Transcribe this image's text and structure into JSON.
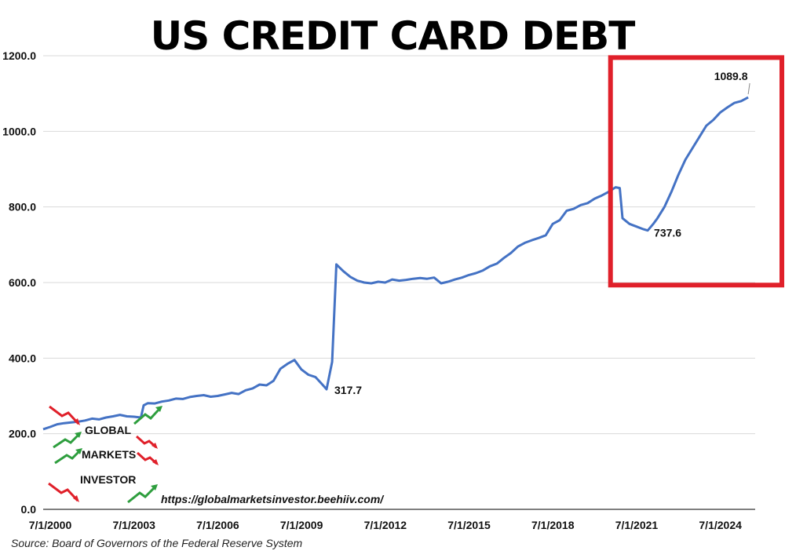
{
  "chart_data": {
    "type": "line",
    "title": "US CREDIT CARD DEBT",
    "xlabel": "",
    "ylabel": "",
    "ylim": [
      0,
      1200
    ],
    "yticks": [
      "0.0",
      "200.0",
      "400.0",
      "600.0",
      "800.0",
      "1000.0",
      "1200.0"
    ],
    "xticks": [
      "7/1/2000",
      "7/1/2003",
      "7/1/2006",
      "7/1/2009",
      "7/1/2012",
      "7/1/2015",
      "7/1/2018",
      "7/1/2021",
      "7/1/2024"
    ],
    "grid": true,
    "line_color": "#4472c4",
    "highlight_color": "#e0202a",
    "series": [
      {
        "values": [
          [
            2000.0,
            212
          ],
          [
            2000.25,
            218
          ],
          [
            2000.5,
            225
          ],
          [
            2000.75,
            228
          ],
          [
            2001.0,
            230
          ],
          [
            2001.25,
            232
          ],
          [
            2001.5,
            235
          ],
          [
            2001.75,
            240
          ],
          [
            2002.0,
            238
          ],
          [
            2002.25,
            243
          ],
          [
            2002.5,
            246
          ],
          [
            2002.75,
            250
          ],
          [
            2003.0,
            246
          ],
          [
            2003.25,
            245
          ],
          [
            2003.5,
            243
          ],
          [
            2003.6,
            275
          ],
          [
            2003.75,
            281
          ],
          [
            2004.0,
            280
          ],
          [
            2004.25,
            285
          ],
          [
            2004.5,
            288
          ],
          [
            2004.75,
            293
          ],
          [
            2005.0,
            292
          ],
          [
            2005.25,
            297
          ],
          [
            2005.5,
            300
          ],
          [
            2005.75,
            302
          ],
          [
            2006.0,
            298
          ],
          [
            2006.25,
            300
          ],
          [
            2006.5,
            304
          ],
          [
            2006.75,
            308
          ],
          [
            2007.0,
            305
          ],
          [
            2007.25,
            315
          ],
          [
            2007.5,
            320
          ],
          [
            2007.75,
            330
          ],
          [
            2008.0,
            328
          ],
          [
            2008.25,
            340
          ],
          [
            2008.5,
            372
          ],
          [
            2008.75,
            385
          ],
          [
            2009.0,
            395
          ],
          [
            2009.25,
            370
          ],
          [
            2009.5,
            356
          ],
          [
            2009.75,
            350
          ],
          [
            2010.0,
            330
          ],
          [
            2010.15,
            317.7
          ],
          [
            2010.35,
            390
          ],
          [
            2010.5,
            648
          ],
          [
            2010.75,
            630
          ],
          [
            2011.0,
            615
          ],
          [
            2011.25,
            605
          ],
          [
            2011.5,
            600
          ],
          [
            2011.75,
            598
          ],
          [
            2012.0,
            602
          ],
          [
            2012.25,
            600
          ],
          [
            2012.5,
            608
          ],
          [
            2012.75,
            605
          ],
          [
            2013.0,
            607
          ],
          [
            2013.25,
            610
          ],
          [
            2013.5,
            612
          ],
          [
            2013.75,
            610
          ],
          [
            2014.0,
            613
          ],
          [
            2014.25,
            598
          ],
          [
            2014.5,
            602
          ],
          [
            2014.75,
            608
          ],
          [
            2015.0,
            613
          ],
          [
            2015.25,
            620
          ],
          [
            2015.5,
            625
          ],
          [
            2015.75,
            632
          ],
          [
            2016.0,
            643
          ],
          [
            2016.25,
            650
          ],
          [
            2016.5,
            665
          ],
          [
            2016.75,
            678
          ],
          [
            2017.0,
            695
          ],
          [
            2017.25,
            705
          ],
          [
            2017.5,
            712
          ],
          [
            2017.75,
            718
          ],
          [
            2018.0,
            725
          ],
          [
            2018.25,
            755
          ],
          [
            2018.5,
            765
          ],
          [
            2018.75,
            790
          ],
          [
            2019.0,
            795
          ],
          [
            2019.25,
            805
          ],
          [
            2019.5,
            810
          ],
          [
            2019.75,
            822
          ],
          [
            2020.0,
            830
          ],
          [
            2020.25,
            840
          ],
          [
            2020.5,
            852
          ],
          [
            2020.65,
            850
          ],
          [
            2020.75,
            770
          ],
          [
            2021.0,
            755
          ],
          [
            2021.25,
            748
          ],
          [
            2021.5,
            741
          ],
          [
            2021.65,
            737.6
          ],
          [
            2021.85,
            755
          ],
          [
            2022.0,
            770
          ],
          [
            2022.25,
            800
          ],
          [
            2022.5,
            840
          ],
          [
            2022.75,
            885
          ],
          [
            2023.0,
            925
          ],
          [
            2023.25,
            955
          ],
          [
            2023.5,
            985
          ],
          [
            2023.75,
            1015
          ],
          [
            2024.0,
            1030
          ],
          [
            2024.25,
            1050
          ],
          [
            2024.5,
            1063
          ],
          [
            2024.75,
            1075
          ],
          [
            2025.0,
            1080
          ],
          [
            2025.25,
            1089.8
          ]
        ]
      }
    ],
    "annotations": [
      {
        "label": "317.7",
        "x": 2010.15,
        "y": 317.7
      },
      {
        "label": "737.6",
        "x": 2021.65,
        "y": 737.6
      },
      {
        "label": "1089.8",
        "x": 2025.25,
        "y": 1089.8
      }
    ],
    "highlight_range": {
      "x_from": 2020.6,
      "x_to": 2025.4,
      "y_from": 560,
      "y_to": 1220
    }
  },
  "logo": {
    "word1": "GLOBAL",
    "word2": "MARKETS",
    "word3": "INVESTOR"
  },
  "url": "https://globalmarketsinvestor.beehiiv.com/",
  "source": "Source: Board of Governors of the Federal Reserve System"
}
